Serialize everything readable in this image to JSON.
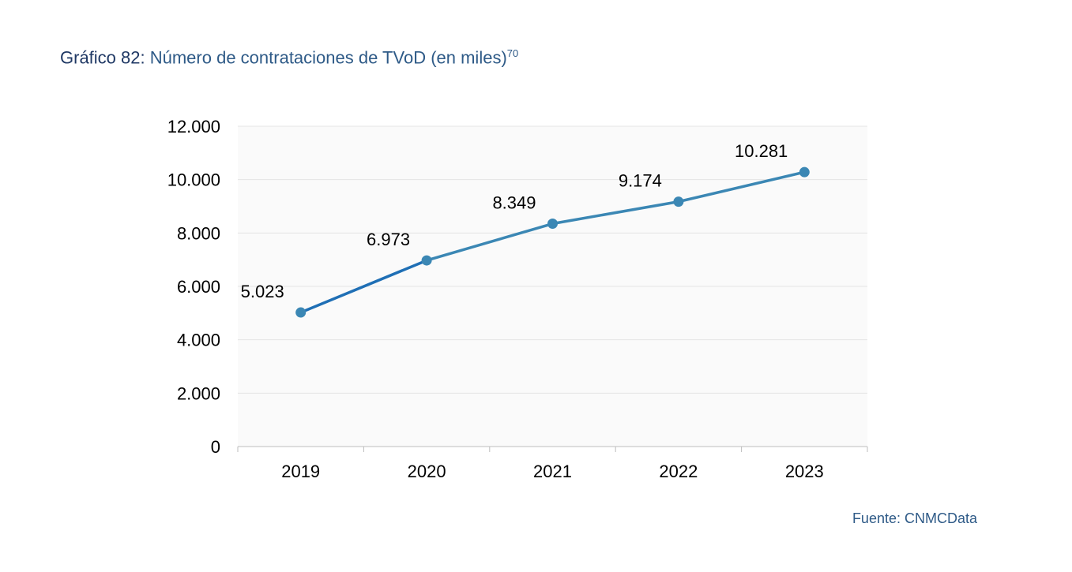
{
  "figure": {
    "title_prefix": "Gráfico 82:",
    "title_text": "Número de contrataciones de TVoD (en miles)",
    "title_footnote": "70",
    "source": "Fuente: CNMCData"
  },
  "colors": {
    "title_prefix": "#1f3864",
    "title_text": "#2e5a87",
    "line": "#3b87b4",
    "line_first_segment": "#1f6fb5",
    "marker": "#3b87b4",
    "plot_background": "#fafafa",
    "grid": "#e4e4e4",
    "axis": "#bdbdbd"
  },
  "chart_data": {
    "type": "line",
    "title": "Número de contrataciones de TVoD (en miles)",
    "categories": [
      "2019",
      "2020",
      "2021",
      "2022",
      "2023"
    ],
    "series": [
      {
        "values": [
          5023,
          6973,
          8349,
          9174,
          10281
        ],
        "labels": [
          "5.023",
          "6.973",
          "8.349",
          "9.174",
          "10.281"
        ]
      }
    ],
    "ylim": [
      0,
      12000
    ],
    "yticks": [
      0,
      2000,
      4000,
      6000,
      8000,
      10000,
      12000
    ],
    "ytick_labels": [
      "0",
      "2.000",
      "4.000",
      "6.000",
      "8.000",
      "10.000",
      "12.000"
    ],
    "grid": true,
    "legend": "none"
  }
}
